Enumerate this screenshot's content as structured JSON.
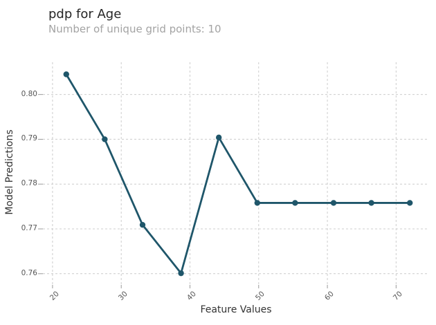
{
  "header": {
    "title": "pdp for Age",
    "subtitle": "Number of unique grid points: 10"
  },
  "chart_data": {
    "type": "line",
    "title": "pdp for Age",
    "subtitle": "Number of unique grid points: 10",
    "xlabel": "Feature Values",
    "ylabel": "Model Predictions",
    "x": [
      22.0,
      27.6,
      33.1,
      38.7,
      44.2,
      49.8,
      55.3,
      60.9,
      66.4,
      72.0
    ],
    "y": [
      0.8045,
      0.79,
      0.7709,
      0.7601,
      0.7904,
      0.7758,
      0.7758,
      0.7758,
      0.7758,
      0.7758
    ],
    "xticks": [
      20,
      30,
      40,
      50,
      60,
      70
    ],
    "yticks": [
      0.76,
      0.77,
      0.78,
      0.79,
      0.8
    ],
    "xlim": [
      18.6,
      74.8
    ],
    "ylim": [
      0.7575,
      0.8072
    ],
    "grid": true,
    "grid_style": "dashed",
    "legend": false,
    "marker": "circle",
    "colors": {
      "line": "#1f566a",
      "marker": "#1f566a",
      "grid": "#cccccc",
      "tick_mark": "#999999",
      "tick_label": "#555555",
      "axis_label": "#333333",
      "title": "#262626",
      "subtitle": "#a3a3a3",
      "background": "#ffffff"
    }
  }
}
